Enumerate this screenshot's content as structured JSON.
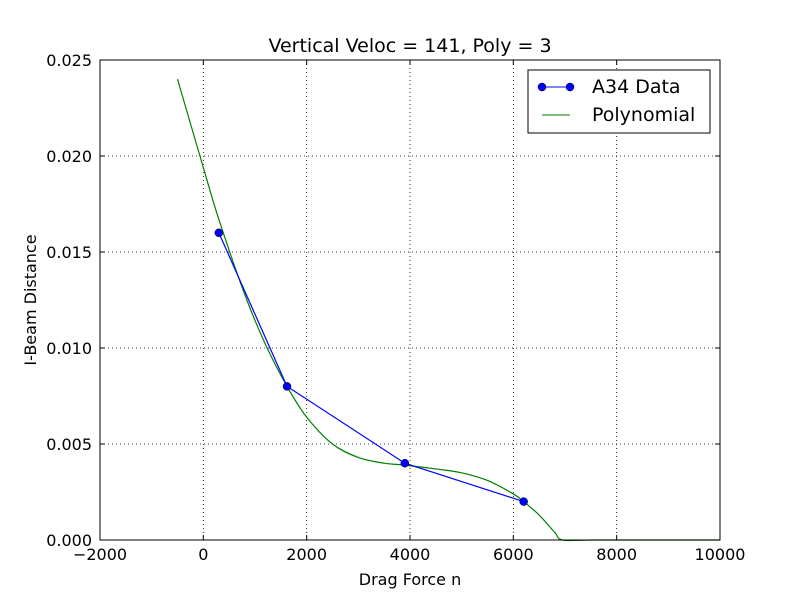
{
  "chart_data": {
    "type": "line",
    "title": "Vertical Veloc = 141, Poly = 3",
    "xlabel": "Drag Force n",
    "ylabel": "I-Beam Distance",
    "xlim": [
      -2000,
      10000
    ],
    "ylim": [
      0,
      0.025
    ],
    "x_ticks": [
      -2000,
      0,
      2000,
      4000,
      6000,
      8000,
      10000
    ],
    "x_tick_labels": [
      "−2000",
      "0",
      "2000",
      "4000",
      "6000",
      "8000",
      "10000"
    ],
    "y_ticks": [
      0,
      0.005,
      0.01,
      0.015,
      0.02,
      0.025
    ],
    "y_tick_labels": [
      "0.000",
      "0.005",
      "0.010",
      "0.015",
      "0.020",
      "0.025"
    ],
    "grid": true,
    "legend_position": "top-right",
    "series": [
      {
        "name": "A34 Data",
        "style": "line-markers",
        "color": "#0000ff",
        "x": [
          300,
          1620,
          3900,
          6200
        ],
        "y": [
          0.016,
          0.008,
          0.004,
          0.002
        ]
      },
      {
        "name": "Polynomial",
        "style": "line",
        "color": "#008000",
        "x": [
          -500,
          0,
          300,
          800,
          1200,
          1620,
          2000,
          2500,
          3000,
          3500,
          3900,
          4500,
          5000,
          5500,
          6000,
          6200,
          6500,
          6800,
          6950,
          7500,
          8000,
          9000,
          10000
        ],
        "y": [
          0.024,
          0.0194,
          0.0167,
          0.0128,
          0.0102,
          0.008,
          0.0064,
          0.005,
          0.0043,
          0.004,
          0.0039,
          0.0037,
          0.0035,
          0.0031,
          0.0024,
          0.002,
          0.0013,
          0.0004,
          0.0,
          0.0,
          0.0,
          0.0,
          0.0
        ]
      }
    ]
  }
}
